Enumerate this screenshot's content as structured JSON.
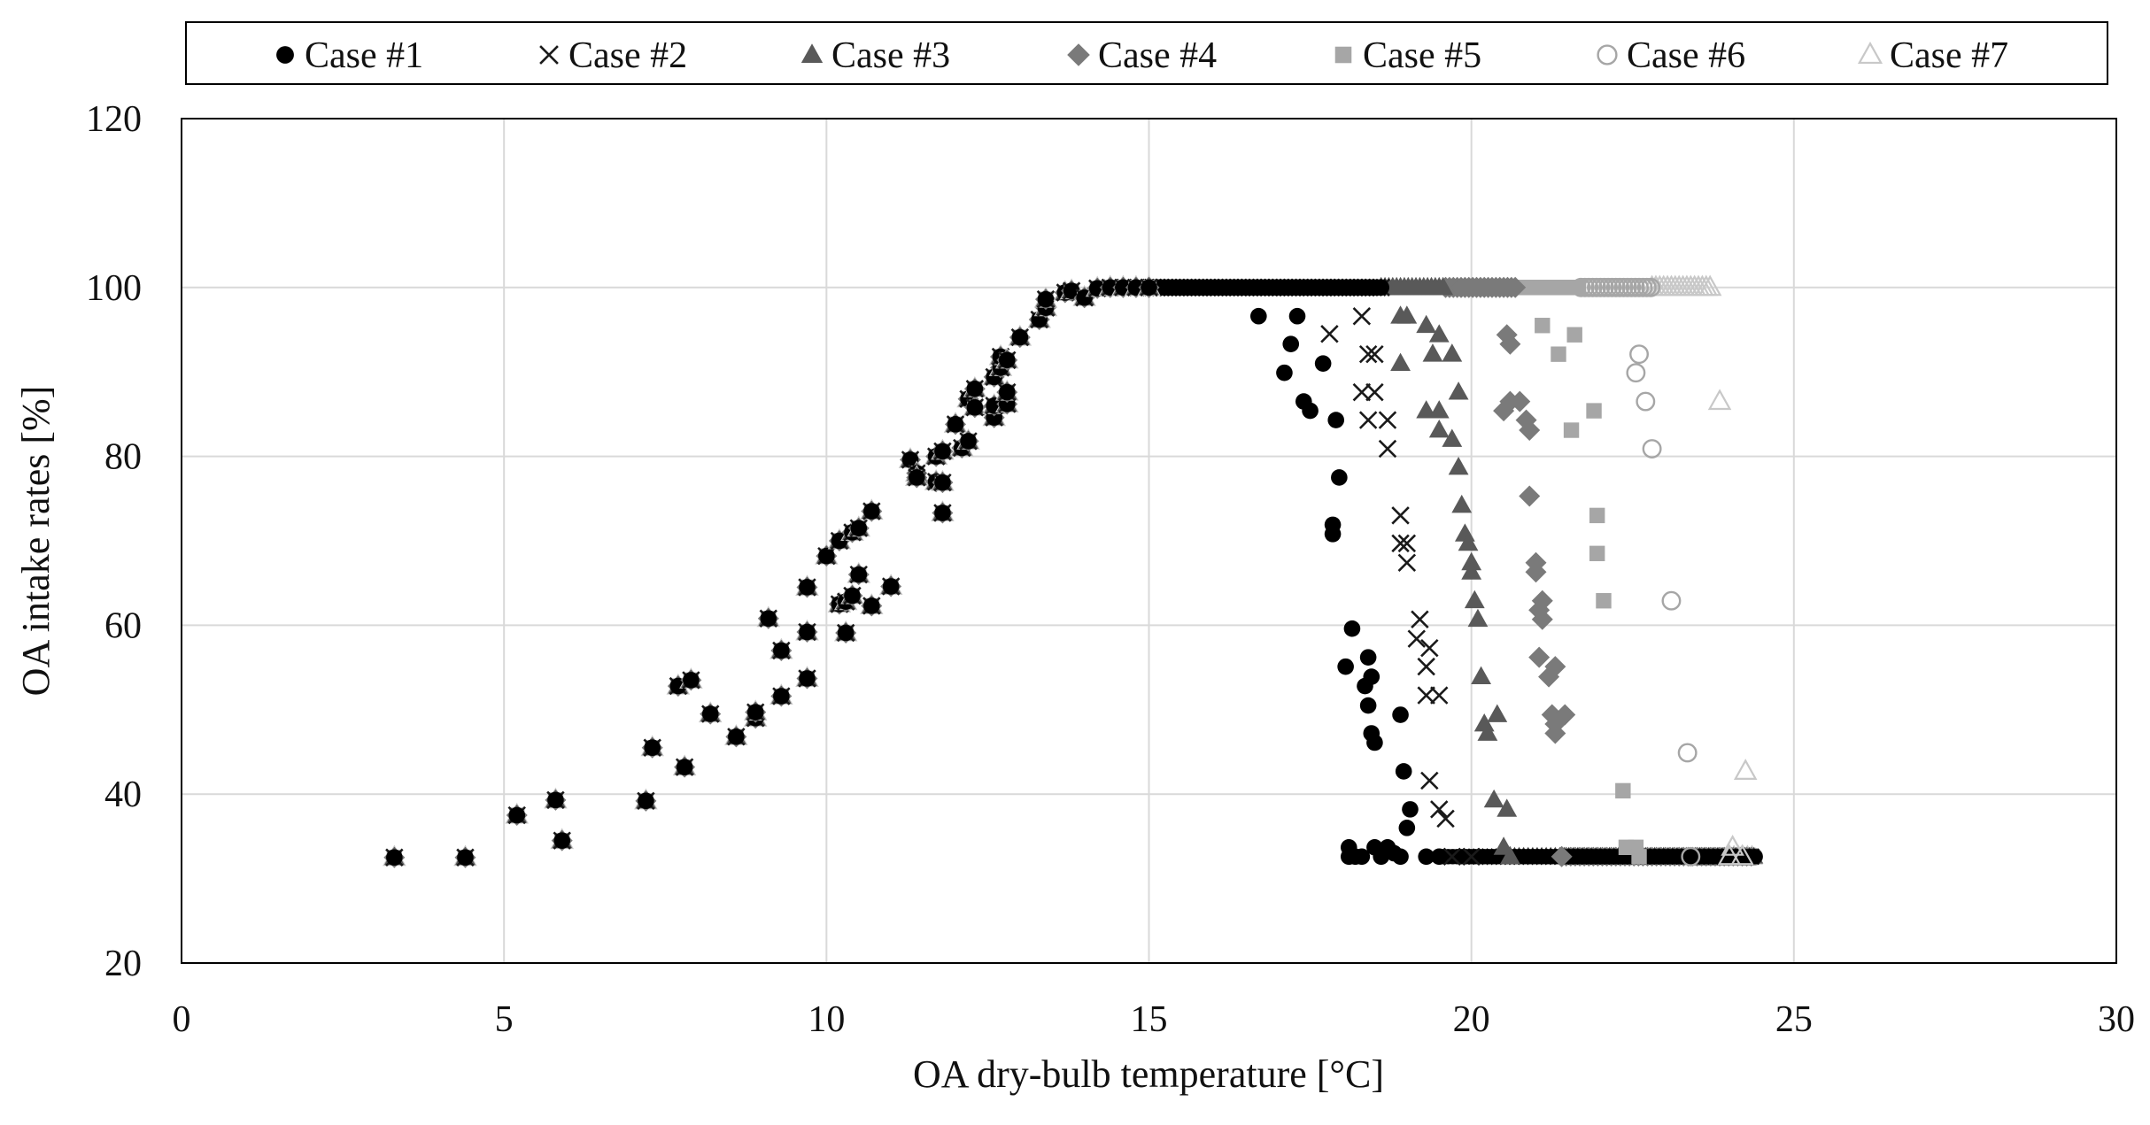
{
  "chart_data": {
    "type": "scatter",
    "title": "",
    "xlabel": "OA dry-bulb temperature [°C]",
    "ylabel": "OA intake rates [%]",
    "xlim": [
      0,
      30
    ],
    "ylim": [
      20,
      120
    ],
    "xticks": [
      0,
      5,
      10,
      15,
      20,
      25,
      30
    ],
    "yticks": [
      20,
      40,
      60,
      80,
      100,
      120
    ],
    "x_tick_labels": [
      "0",
      "5",
      "10",
      "15",
      "20",
      "25",
      "30"
    ],
    "y_tick_labels": [
      "20",
      "40",
      "60",
      "80",
      "100",
      "120"
    ],
    "grid": true,
    "legend_position": "top",
    "colors": {
      "case1": "#000000",
      "case2": "#1a1a1a",
      "case3": "#595959",
      "case4": "#7a7a7a",
      "case5": "#a6a6a6",
      "case6": "#a6a6a6",
      "case7": "#c8c8c8",
      "grid": "#d9d9d9",
      "axis": "#000000"
    },
    "common_ramp": [
      [
        3.3,
        32.5
      ],
      [
        4.4,
        32.5
      ],
      [
        5.2,
        37.5
      ],
      [
        5.8,
        39.3
      ],
      [
        5.9,
        34.5
      ],
      [
        7.2,
        39.2
      ],
      [
        7.3,
        45.5
      ],
      [
        7.7,
        52.8
      ],
      [
        7.8,
        43.2
      ],
      [
        7.9,
        53.5
      ],
      [
        8.2,
        49.5
      ],
      [
        8.6,
        46.8
      ],
      [
        8.9,
        49.0
      ],
      [
        8.9,
        49.7
      ],
      [
        9.1,
        60.8
      ],
      [
        9.3,
        57.0
      ],
      [
        9.3,
        51.6
      ],
      [
        9.7,
        64.5
      ],
      [
        9.7,
        59.2
      ],
      [
        9.7,
        53.7
      ],
      [
        10.0,
        68.2
      ],
      [
        10.2,
        70.0
      ],
      [
        10.2,
        62.5
      ],
      [
        10.3,
        62.8
      ],
      [
        10.3,
        59.1
      ],
      [
        10.4,
        71.0
      ],
      [
        10.4,
        63.5
      ],
      [
        10.5,
        71.5
      ],
      [
        10.5,
        66.0
      ],
      [
        10.7,
        73.5
      ],
      [
        10.7,
        62.3
      ],
      [
        11.0,
        64.6
      ],
      [
        11.3,
        79.6
      ],
      [
        11.4,
        78.0
      ],
      [
        11.4,
        77.5
      ],
      [
        11.7,
        80.0
      ],
      [
        11.7,
        77.0
      ],
      [
        11.8,
        80.6
      ],
      [
        11.8,
        76.9
      ],
      [
        11.8,
        73.3
      ],
      [
        12.0,
        83.8
      ],
      [
        12.1,
        81.0
      ],
      [
        12.2,
        81.8
      ],
      [
        12.2,
        86.8
      ],
      [
        12.3,
        85.8
      ],
      [
        12.3,
        88.0
      ],
      [
        12.6,
        84.6
      ],
      [
        12.6,
        86.0
      ],
      [
        12.6,
        89.4
      ],
      [
        12.7,
        90.5
      ],
      [
        12.7,
        91.8
      ],
      [
        12.8,
        86.2
      ],
      [
        12.8,
        87.6
      ],
      [
        12.8,
        91.4
      ],
      [
        13.0,
        94.1
      ],
      [
        13.3,
        96.2
      ],
      [
        13.4,
        97.6
      ],
      [
        13.4,
        98.6
      ],
      [
        13.7,
        99.4
      ],
      [
        13.8,
        99.6
      ],
      [
        14.0,
        98.8
      ],
      [
        14.2,
        99.9
      ],
      [
        14.4,
        100
      ],
      [
        14.6,
        100
      ],
      [
        14.8,
        100
      ],
      [
        15.0,
        100
      ]
    ],
    "series": [
      {
        "name": "Case #1",
        "marker": "circle",
        "plateau_x": [
          15.0,
          18.6
        ],
        "points": [
          [
            16.7,
            96.6
          ],
          [
            17.3,
            96.6
          ],
          [
            17.2,
            93.3
          ],
          [
            17.1,
            89.9
          ],
          [
            17.7,
            91.0
          ],
          [
            17.4,
            86.5
          ],
          [
            17.5,
            85.4
          ],
          [
            17.9,
            84.3
          ],
          [
            17.95,
            77.5
          ],
          [
            17.85,
            71.9
          ],
          [
            17.85,
            70.8
          ],
          [
            18.15,
            59.6
          ],
          [
            18.4,
            56.2
          ],
          [
            18.05,
            55.1
          ],
          [
            18.45,
            53.9
          ],
          [
            18.35,
            52.8
          ],
          [
            18.4,
            50.5
          ],
          [
            18.45,
            47.2
          ],
          [
            18.5,
            46.1
          ],
          [
            18.9,
            49.4
          ],
          [
            18.95,
            42.7
          ],
          [
            19.05,
            38.2
          ],
          [
            19.0,
            36.0
          ],
          [
            18.7,
            33.7
          ],
          [
            18.1,
            33.7
          ],
          [
            18.5,
            33.7
          ],
          [
            18.8,
            33.0
          ],
          [
            18.1,
            32.6
          ],
          [
            18.2,
            32.6
          ],
          [
            18.3,
            32.6
          ],
          [
            18.6,
            32.6
          ],
          [
            18.9,
            32.6
          ],
          [
            19.3,
            32.6
          ],
          [
            19.5,
            32.6
          ]
        ],
        "floor_x": [
          19.5,
          24.4
        ]
      },
      {
        "name": "Case #2",
        "marker": "x",
        "plateau_x": [
          15.0,
          18.6
        ],
        "points": [
          [
            18.3,
            96.6
          ],
          [
            17.8,
            94.5
          ],
          [
            18.4,
            92.1
          ],
          [
            18.5,
            92.1
          ],
          [
            18.3,
            87.6
          ],
          [
            18.5,
            87.6
          ],
          [
            18.4,
            84.3
          ],
          [
            18.7,
            84.3
          ],
          [
            18.7,
            80.9
          ],
          [
            18.9,
            73.0
          ],
          [
            18.9,
            69.7
          ],
          [
            19.0,
            69.7
          ],
          [
            19.0,
            67.4
          ],
          [
            19.2,
            60.7
          ],
          [
            19.15,
            58.4
          ],
          [
            19.35,
            57.3
          ],
          [
            19.3,
            55.1
          ],
          [
            19.3,
            51.7
          ],
          [
            19.5,
            51.7
          ],
          [
            19.35,
            41.6
          ],
          [
            19.5,
            38.2
          ],
          [
            19.6,
            37.1
          ],
          [
            19.7,
            32.6
          ],
          [
            20.0,
            32.6
          ]
        ],
        "floor_x": [
          20.0,
          24.4
        ]
      },
      {
        "name": "Case #3",
        "marker": "triangle",
        "plateau_x": [
          18.6,
          19.6
        ],
        "points": [
          [
            18.9,
            96.6
          ],
          [
            19.0,
            96.6
          ],
          [
            19.3,
            95.5
          ],
          [
            19.5,
            94.4
          ],
          [
            19.4,
            92.1
          ],
          [
            19.7,
            92.1
          ],
          [
            18.9,
            91.0
          ],
          [
            19.8,
            87.6
          ],
          [
            19.3,
            85.4
          ],
          [
            19.5,
            85.4
          ],
          [
            19.5,
            83.1
          ],
          [
            19.7,
            82.0
          ],
          [
            19.8,
            78.7
          ],
          [
            19.85,
            74.2
          ],
          [
            19.9,
            70.8
          ],
          [
            19.95,
            69.7
          ],
          [
            20.0,
            67.4
          ],
          [
            20.0,
            66.3
          ],
          [
            20.05,
            62.9
          ],
          [
            20.1,
            60.7
          ],
          [
            20.15,
            53.9
          ],
          [
            20.4,
            49.4
          ],
          [
            20.2,
            48.3
          ],
          [
            20.25,
            47.2
          ],
          [
            20.35,
            39.3
          ],
          [
            20.55,
            38.2
          ],
          [
            20.5,
            33.7
          ],
          [
            20.6,
            32.6
          ]
        ],
        "floor_x": [
          20.6,
          24.4
        ]
      },
      {
        "name": "Case #4",
        "marker": "diamond",
        "plateau_x": [
          19.6,
          20.7
        ],
        "points": [
          [
            20.55,
            94.4
          ],
          [
            20.6,
            93.3
          ],
          [
            20.5,
            85.4
          ],
          [
            20.6,
            86.5
          ],
          [
            20.75,
            86.5
          ],
          [
            20.85,
            84.3
          ],
          [
            20.9,
            83.1
          ],
          [
            20.9,
            75.3
          ],
          [
            21.0,
            67.4
          ],
          [
            21.0,
            66.3
          ],
          [
            21.1,
            62.9
          ],
          [
            21.05,
            61.8
          ],
          [
            21.1,
            60.7
          ],
          [
            21.05,
            56.2
          ],
          [
            21.3,
            55.1
          ],
          [
            21.2,
            53.9
          ],
          [
            21.25,
            49.4
          ],
          [
            21.45,
            49.4
          ],
          [
            21.3,
            48.3
          ],
          [
            21.3,
            47.2
          ],
          [
            21.4,
            32.6
          ]
        ],
        "floor_x": [
          21.4,
          24.4
        ]
      },
      {
        "name": "Case #5",
        "marker": "square",
        "plateau_x": [
          20.7,
          21.7
        ],
        "points": [
          [
            21.1,
            95.5
          ],
          [
            21.6,
            94.4
          ],
          [
            21.35,
            92.1
          ],
          [
            21.9,
            85.4
          ],
          [
            21.55,
            83.1
          ],
          [
            21.95,
            73.0
          ],
          [
            21.95,
            68.5
          ],
          [
            22.05,
            62.9
          ],
          [
            22.35,
            40.4
          ],
          [
            22.4,
            33.7
          ],
          [
            22.55,
            33.7
          ],
          [
            22.6,
            32.6
          ]
        ],
        "floor_x": [
          22.6,
          24.4
        ]
      },
      {
        "name": "Case #6",
        "marker": "circle-open",
        "plateau_x": [
          21.7,
          22.8
        ],
        "points": [
          [
            22.6,
            92.1
          ],
          [
            22.55,
            89.9
          ],
          [
            22.7,
            86.5
          ],
          [
            22.8,
            80.9
          ],
          [
            23.1,
            62.9
          ],
          [
            23.35,
            44.9
          ],
          [
            23.4,
            32.6
          ]
        ],
        "floor_x": [
          23.4,
          24.4
        ]
      },
      {
        "name": "Case #7",
        "marker": "triangle-open",
        "plateau_x": [
          22.8,
          23.7
        ],
        "points": [
          [
            23.85,
            86.5
          ],
          [
            24.25,
            42.7
          ],
          [
            24.05,
            33.7
          ],
          [
            24.0,
            32.6
          ],
          [
            24.2,
            32.6
          ]
        ],
        "floor_x": [
          24.0,
          24.4
        ]
      }
    ]
  }
}
